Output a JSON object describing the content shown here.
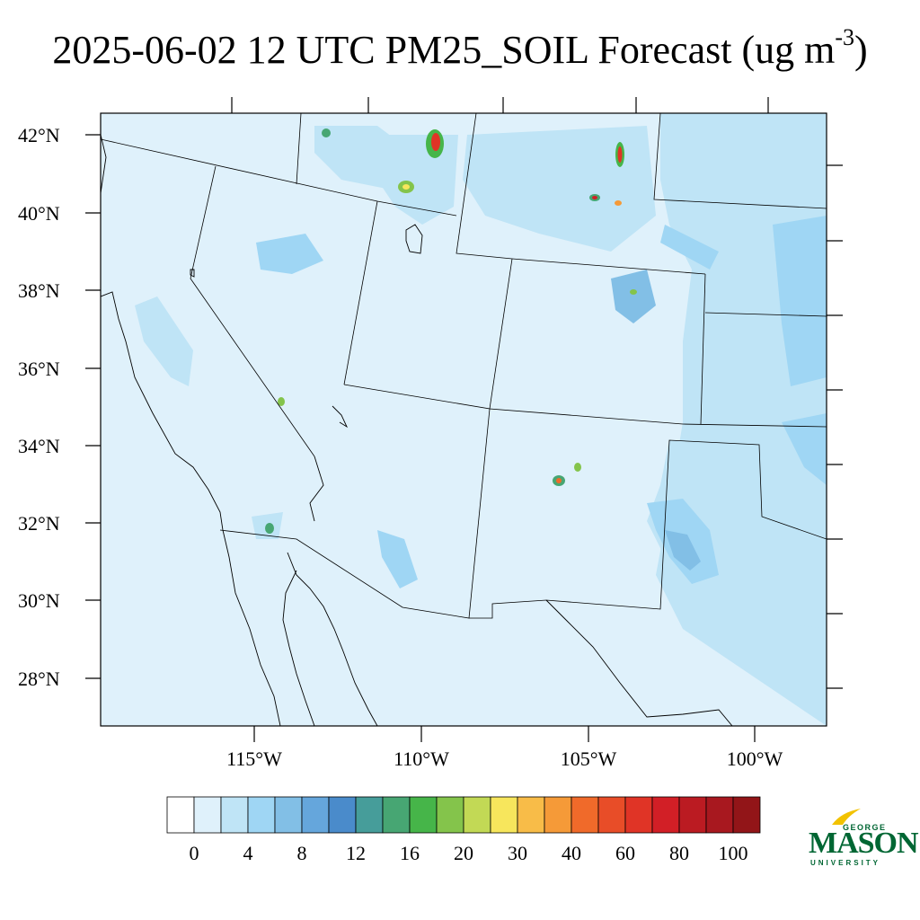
{
  "title": {
    "text": "2025-06-02 12 UTC PM25_SOIL Forecast (ug m",
    "sup": "-3",
    "close": ")"
  },
  "latitudes": [
    "42°N",
    "40°N",
    "38°N",
    "36°N",
    "34°N",
    "32°N",
    "30°N",
    "28°N"
  ],
  "longitudes": [
    "115°W",
    "110°W",
    "105°W",
    "100°W"
  ],
  "colorbar": {
    "colors": [
      "#ffffff",
      "#dff1fb",
      "#bfe4f6",
      "#9fd6f4",
      "#82bfe6",
      "#65a6dc",
      "#4a8bcb",
      "#469d9a",
      "#47a673",
      "#46b549",
      "#84c44b",
      "#c2d955",
      "#f7e65c",
      "#f8bc48",
      "#f59a38",
      "#f06a2a",
      "#e84d28",
      "#e03426",
      "#d21f26",
      "#bb1b22",
      "#a8181f",
      "#921518"
    ],
    "labels": [
      "0",
      "4",
      "8",
      "12",
      "16",
      "20",
      "30",
      "40",
      "60",
      "80",
      "100"
    ]
  },
  "logo": {
    "line1": "GEORGE",
    "line2": "MASON",
    "line3": "UNIVERSITY"
  },
  "colors": {
    "background_field": "#dff1fb",
    "low": "#bfe4f6",
    "moderate": "#9fd6f4",
    "high": "#82bfe6",
    "peak": "#e03426"
  }
}
